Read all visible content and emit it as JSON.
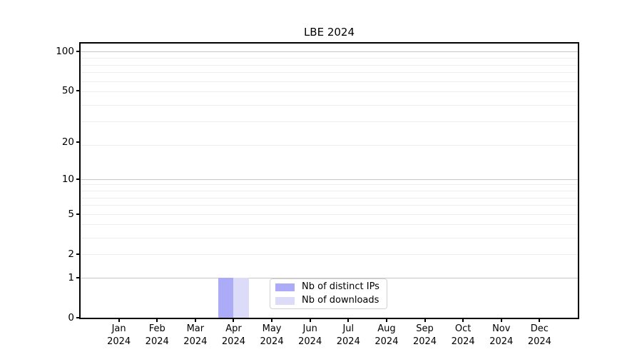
{
  "chart_data": {
    "type": "bar",
    "title": "LBE 2024",
    "categories": [
      "Jan",
      "Feb",
      "Mar",
      "Apr",
      "May",
      "Jun",
      "Jul",
      "Aug",
      "Sep",
      "Oct",
      "Nov",
      "Dec"
    ],
    "category_year": "2024",
    "series": [
      {
        "name": "Nb of distinct IPs",
        "color": "#ababf7",
        "values": [
          0,
          0,
          0,
          1,
          0,
          0,
          0,
          0,
          0,
          0,
          0,
          0
        ]
      },
      {
        "name": "Nb of downloads",
        "color": "#dcdcf9",
        "values": [
          0,
          0,
          0,
          1,
          0,
          0,
          0,
          0,
          0,
          0,
          0,
          0
        ]
      }
    ],
    "xlabel": "",
    "ylabel": "",
    "yscale": "log1p",
    "ylim": [
      0,
      115
    ],
    "yticks": [
      0,
      1,
      2,
      5,
      10,
      20,
      50,
      100
    ],
    "grid": {
      "on": true,
      "minor_values": [
        2,
        3,
        4,
        5,
        6,
        7,
        8,
        9,
        19,
        29,
        39,
        49,
        59,
        69,
        79,
        89
      ],
      "major_values": [
        1,
        10,
        100
      ],
      "minor_color": "#ededed",
      "major_color": "#c6c6c6"
    },
    "legend_position": "lower center",
    "bar_value_apr_distinct_ips": 1,
    "bar_value_apr_downloads": 1
  }
}
